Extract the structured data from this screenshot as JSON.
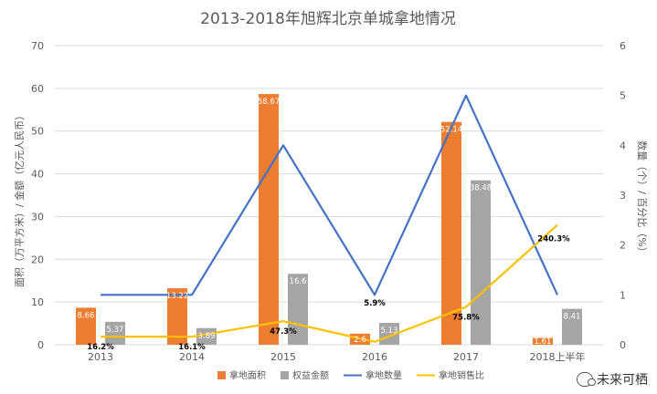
{
  "chart_data": {
    "type": "bar",
    "title": "2013-2018年旭辉北京单城拿地情况",
    "categories": [
      "2013",
      "2014",
      "2015",
      "2016",
      "2017",
      "2018上半年"
    ],
    "ylabel_left": "面积（万平方米）/ 金额（亿元人民币）",
    "ylabel_right": "数量（个）/ 百分比（%）",
    "ylim_left": [
      0,
      70
    ],
    "ylim_right": [
      0,
      6
    ],
    "yticks_left": [
      "0",
      "10",
      "20",
      "30",
      "40",
      "50",
      "60",
      "70"
    ],
    "yticks_right": [
      "0",
      "1",
      "2",
      "3",
      "4",
      "5",
      "6"
    ],
    "grid": true,
    "legend_position": "bottom",
    "series": [
      {
        "name": "拿地面积",
        "type": "bar",
        "axis": "left",
        "color": "#ED7D31",
        "values": [
          8.66,
          13.22,
          58.67,
          2.6,
          52.14,
          1.61
        ],
        "labels": [
          "8.66",
          "13.22",
          "58.67",
          "2.6",
          "52.14",
          "1.61"
        ]
      },
      {
        "name": "权益金额",
        "type": "bar",
        "axis": "left",
        "color": "#A5A5A5",
        "values": [
          5.37,
          3.89,
          16.6,
          5.13,
          38.48,
          8.41
        ],
        "labels": [
          "5.37",
          "3.89",
          "16.6",
          "5.13",
          "38.48",
          "8.41"
        ]
      },
      {
        "name": "拿地数量",
        "type": "line",
        "axis": "right",
        "color": "#4472C4",
        "values": [
          1,
          1,
          4,
          1,
          5,
          1
        ]
      },
      {
        "name": "拿地销售比",
        "type": "line",
        "axis": "right",
        "color": "#FFC000",
        "values": [
          0.162,
          0.161,
          0.473,
          0.059,
          0.758,
          2.403
        ],
        "labels": [
          "16.2%",
          "16.1%",
          "47.3%",
          "5.9%",
          "75.8%",
          "240.3%"
        ]
      }
    ]
  },
  "watermark": {
    "text": "未来可栖",
    "icon": "wechat-icon"
  }
}
